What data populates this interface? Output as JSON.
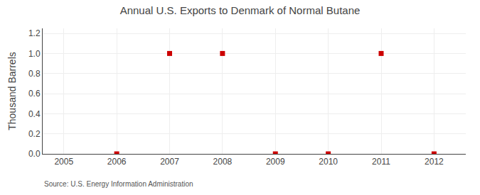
{
  "chart_data": {
    "type": "scatter",
    "title": "Annual U.S. Exports to Denmark of Normal Butane",
    "ylabel": "Thousand Barrels",
    "annotations": [
      "Source: U.S. Energy Information Administration"
    ],
    "x": [
      2006,
      2007,
      2008,
      2009,
      2010,
      2011,
      2012
    ],
    "values": [
      0.0,
      1.0,
      1.0,
      0.0,
      0.0,
      1.0,
      0.0
    ],
    "color": "#cc0000",
    "marker": "square",
    "xlim": [
      2004.6,
      2012.6
    ],
    "ylim": [
      0.0,
      1.25
    ],
    "xticks": [
      2005,
      2006,
      2007,
      2008,
      2009,
      2010,
      2011,
      2012
    ],
    "yticks": [
      {
        "value": 0.0,
        "label": "0.0"
      },
      0.2,
      0.4,
      0.6,
      0.8,
      {
        "value": 1.0,
        "label": "1.0"
      },
      1.2
    ],
    "grid": true
  }
}
